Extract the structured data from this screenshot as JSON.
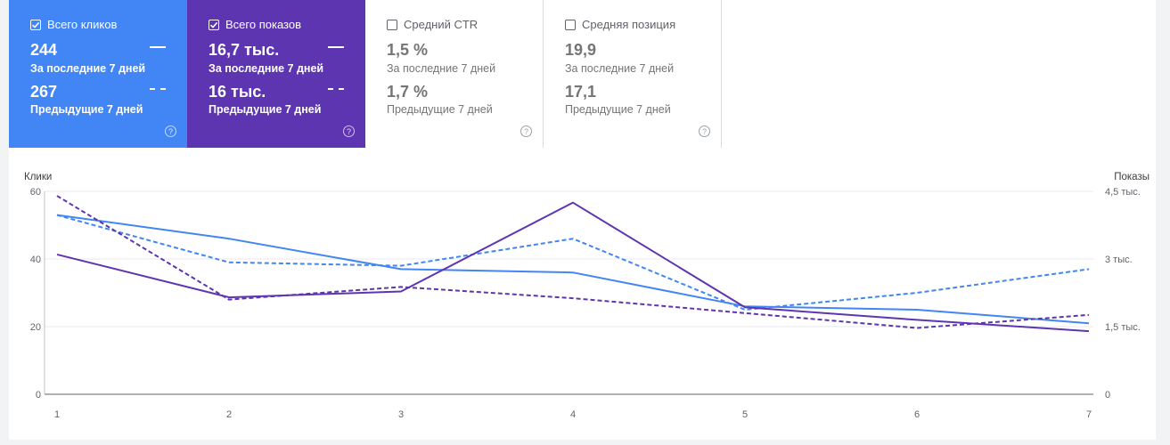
{
  "metrics": {
    "clicks": {
      "label": "Всего кликов",
      "checked": true,
      "current_value": "244",
      "current_period": "За последние 7 дней",
      "previous_value": "267",
      "previous_period": "Предыдущие 7 дней",
      "color": "#4285f4",
      "help_icon": "help-circle-icon"
    },
    "impressions": {
      "label": "Всего показов",
      "checked": true,
      "current_value": "16,7 тыс.",
      "current_period": "За последние 7 дней",
      "previous_value": "16 тыс.",
      "previous_period": "Предыдущие 7 дней",
      "color": "#5e35b1",
      "help_icon": "help-circle-icon"
    },
    "ctr": {
      "label": "Средний CTR",
      "checked": false,
      "current_value": "1,5 %",
      "current_period": "За последние 7 дней",
      "previous_value": "1,7 %",
      "previous_period": "Предыдущие 7 дней",
      "help_icon": "help-circle-icon"
    },
    "position": {
      "label": "Средняя позиция",
      "checked": false,
      "current_value": "19,9",
      "current_period": "За последние 7 дней",
      "previous_value": "17,1",
      "previous_period": "Предыдущие 7 дней",
      "help_icon": "help-circle-icon"
    }
  },
  "chart_data": {
    "type": "line",
    "x": [
      1,
      2,
      3,
      4,
      5,
      6,
      7
    ],
    "left_axis": {
      "label": "Клики",
      "ticks": [
        "60",
        "40",
        "20",
        "0"
      ],
      "range": [
        0,
        60
      ]
    },
    "right_axis": {
      "label": "Показы",
      "ticks": [
        "4,5 тыс.",
        "3 тыс.",
        "1,5 тыс.",
        "0"
      ],
      "range": [
        0,
        4500
      ]
    },
    "series": [
      {
        "metric": "clicks",
        "period": "current",
        "axis": "left",
        "style": "solid",
        "color": "#4285f4",
        "values": [
          53,
          46,
          37,
          36,
          26,
          25,
          21
        ]
      },
      {
        "metric": "clicks",
        "period": "previous",
        "axis": "left",
        "style": "dashed",
        "color": "#4285f4",
        "values": [
          53,
          39,
          38,
          46,
          25,
          30,
          37
        ]
      },
      {
        "metric": "impressions",
        "period": "current",
        "axis": "right",
        "style": "solid",
        "color": "#5e35b1",
        "values": [
          3100,
          2150,
          2280,
          4250,
          1930,
          1650,
          1400
        ]
      },
      {
        "metric": "impressions",
        "period": "previous",
        "axis": "right",
        "style": "dashed",
        "color": "#5e35b1",
        "values": [
          4400,
          2100,
          2380,
          2130,
          1800,
          1470,
          1760
        ]
      }
    ],
    "grid": true,
    "legend": "none"
  }
}
